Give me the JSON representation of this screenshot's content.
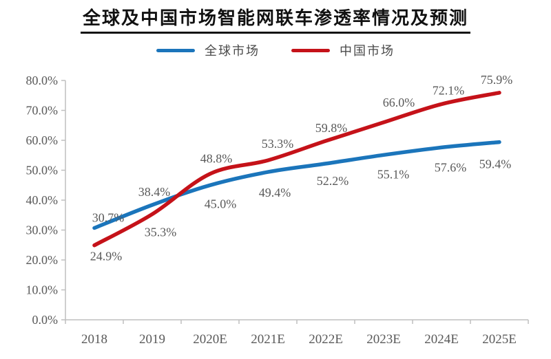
{
  "chart_data": {
    "type": "line",
    "title": "全球及中国市场智能网联车渗透率情况及预测",
    "categories": [
      "2018",
      "2019",
      "2020E",
      "2021E",
      "2022E",
      "2023E",
      "2024E",
      "2025E"
    ],
    "series": [
      {
        "name": "全球市场",
        "color": "#1B75BB",
        "values": [
          30.7,
          38.4,
          45.0,
          49.4,
          52.2,
          55.1,
          57.6,
          59.4
        ]
      },
      {
        "name": "中国市场",
        "color": "#C51219",
        "values": [
          24.9,
          35.3,
          48.8,
          53.3,
          59.8,
          66.0,
          72.1,
          75.9
        ]
      }
    ],
    "ylim": [
      0,
      80
    ],
    "ytick_step": 10,
    "ytick_labels": [
      "0.0%",
      "10.0%",
      "20.0%",
      "30.0%",
      "40.0%",
      "50.0%",
      "60.0%",
      "70.0%",
      "80.0%"
    ],
    "data_label_format": "percent_1dp",
    "grid": false,
    "legend_position": "top",
    "smoothed": true,
    "text_color": "#595959",
    "axis_color": "#BFBFBF"
  }
}
